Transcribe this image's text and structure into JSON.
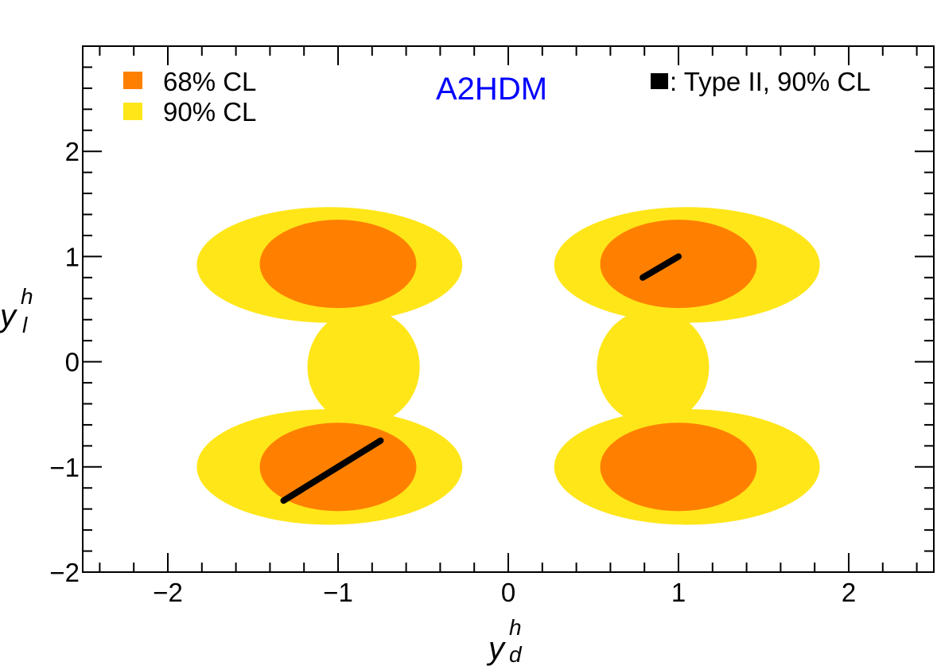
{
  "chart_data": {
    "type": "scatter",
    "title": "A2HDM",
    "xlabel": "y",
    "xlabel_sup": "h",
    "xlabel_sub": "d",
    "ylabel": "y",
    "ylabel_sup": "h",
    "ylabel_sub": "l",
    "xlim": [
      -2.5,
      2.5
    ],
    "ylim": [
      -2,
      3
    ],
    "x_ticks": [
      -2,
      -1,
      0,
      1,
      2
    ],
    "x_tick_labels": [
      "−2",
      "−1",
      "0",
      "1",
      "2"
    ],
    "y_ticks": [
      -2,
      -1,
      0,
      1,
      2
    ],
    "y_tick_labels": [
      "−2",
      "−1",
      "0",
      "1",
      "2"
    ],
    "legend": [
      {
        "label": "68% CL",
        "color": "#ff8000"
      },
      {
        "label": "90% CL",
        "color": "#ffe619"
      }
    ],
    "legend_placement": "top-left",
    "annotation": {
      "label": ": Type II, 90% CL",
      "color": "#000000",
      "placement": "top-right"
    },
    "colors": {
      "cl68": "#ff8000",
      "cl90": "#ffe619",
      "type2": "#000000",
      "title": "#0000ff"
    },
    "series": [
      {
        "name": "90% CL",
        "regions": [
          {
            "cx": -1.05,
            "cy": 0.92,
            "rx": 0.78,
            "ry": 0.55
          },
          {
            "cx": -1.05,
            "cy": -1.0,
            "rx": 0.78,
            "ry": 0.55
          },
          {
            "cx": 1.05,
            "cy": 0.92,
            "rx": 0.78,
            "ry": 0.55
          },
          {
            "cx": 1.05,
            "cy": -1.0,
            "rx": 0.78,
            "ry": 0.55
          },
          {
            "cx": -0.85,
            "cy": -0.05,
            "rx": 0.33,
            "ry": 0.55
          },
          {
            "cx": 0.85,
            "cy": -0.05,
            "rx": 0.33,
            "ry": 0.55
          }
        ]
      },
      {
        "name": "68% CL",
        "regions": [
          {
            "cx": -1.0,
            "cy": 0.93,
            "rx": 0.46,
            "ry": 0.42
          },
          {
            "cx": -1.0,
            "cy": -1.0,
            "rx": 0.46,
            "ry": 0.42
          },
          {
            "cx": 1.0,
            "cy": 0.93,
            "rx": 0.46,
            "ry": 0.42
          },
          {
            "cx": 1.0,
            "cy": -1.0,
            "rx": 0.46,
            "ry": 0.42
          }
        ]
      },
      {
        "name": "Type II, 90% CL",
        "segments": [
          {
            "x": [
              0.79,
              1.0
            ],
            "y": [
              0.8,
              1.0
            ]
          },
          {
            "x": [
              -1.32,
              -1.0
            ],
            "y": [
              -1.32,
              -1.0
            ]
          },
          {
            "x": [
              -1.0,
              -0.75
            ],
            "y": [
              -1.0,
              -0.75
            ]
          }
        ]
      }
    ]
  }
}
